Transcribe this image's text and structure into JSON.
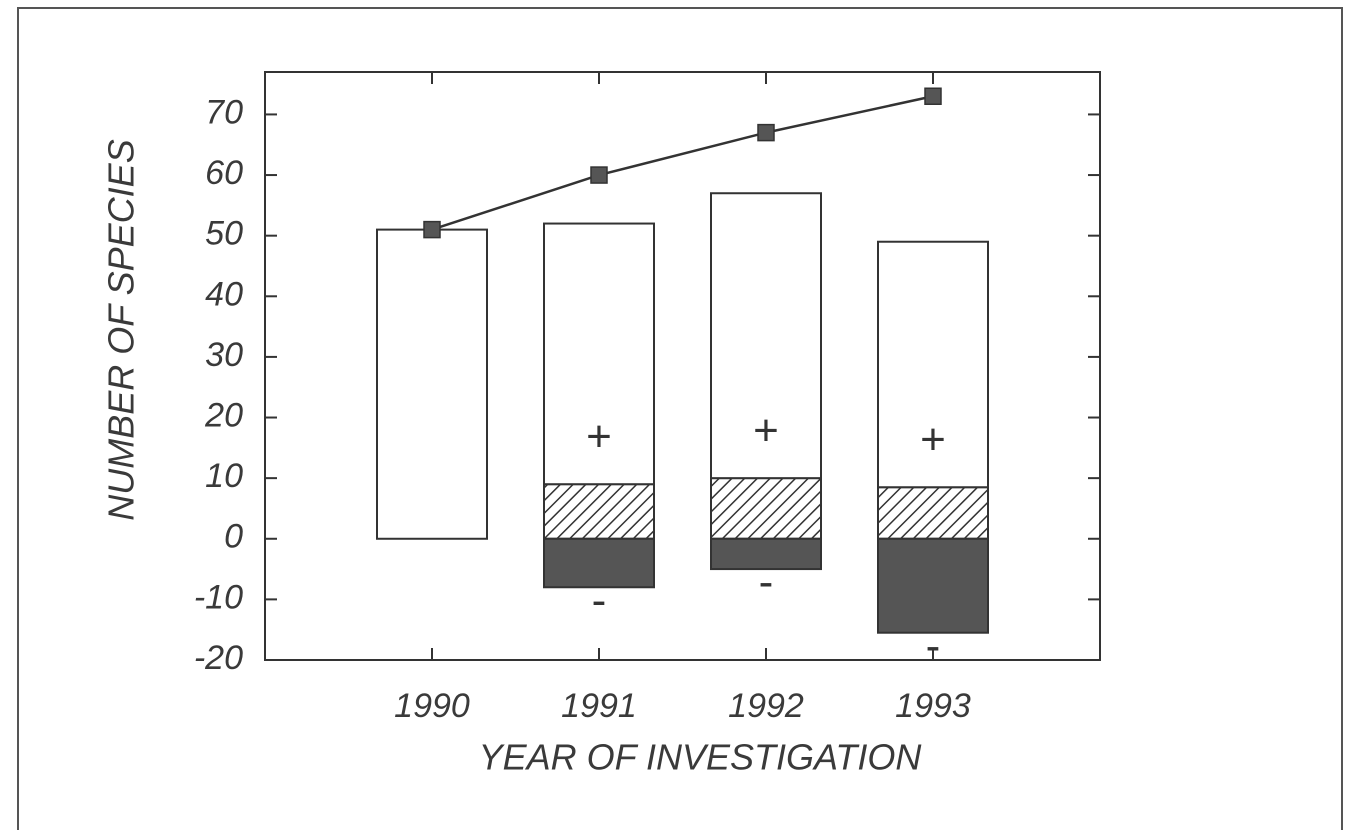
{
  "chart_data": {
    "type": "bar",
    "x_label": "YEAR OF INVESTIGATION",
    "y_label": "NUMBER OF SPECIES",
    "categories": [
      "1990",
      "1991",
      "1992",
      "1993"
    ],
    "ylim": [
      -20,
      77
    ],
    "yticks": [
      -20,
      -10,
      0,
      10,
      20,
      30,
      40,
      50,
      60,
      70
    ],
    "series": [
      {
        "color": "#ffffff",
        "values": [
          51,
          null,
          null,
          null
        ]
      },
      {
        "color": "#ffffff",
        "pattern": "hatch",
        "values": [
          null,
          9,
          10,
          8.5
        ]
      },
      {
        "color": "#ffffff",
        "label": "+",
        "values": [
          null,
          43,
          47,
          40.5
        ]
      },
      {
        "color": "#555555",
        "label": "-",
        "values": [
          null,
          -8,
          -5,
          -15.5
        ]
      },
      {
        "type": "line",
        "color": "#555555",
        "values": [
          51,
          60,
          67,
          73
        ]
      }
    ]
  }
}
